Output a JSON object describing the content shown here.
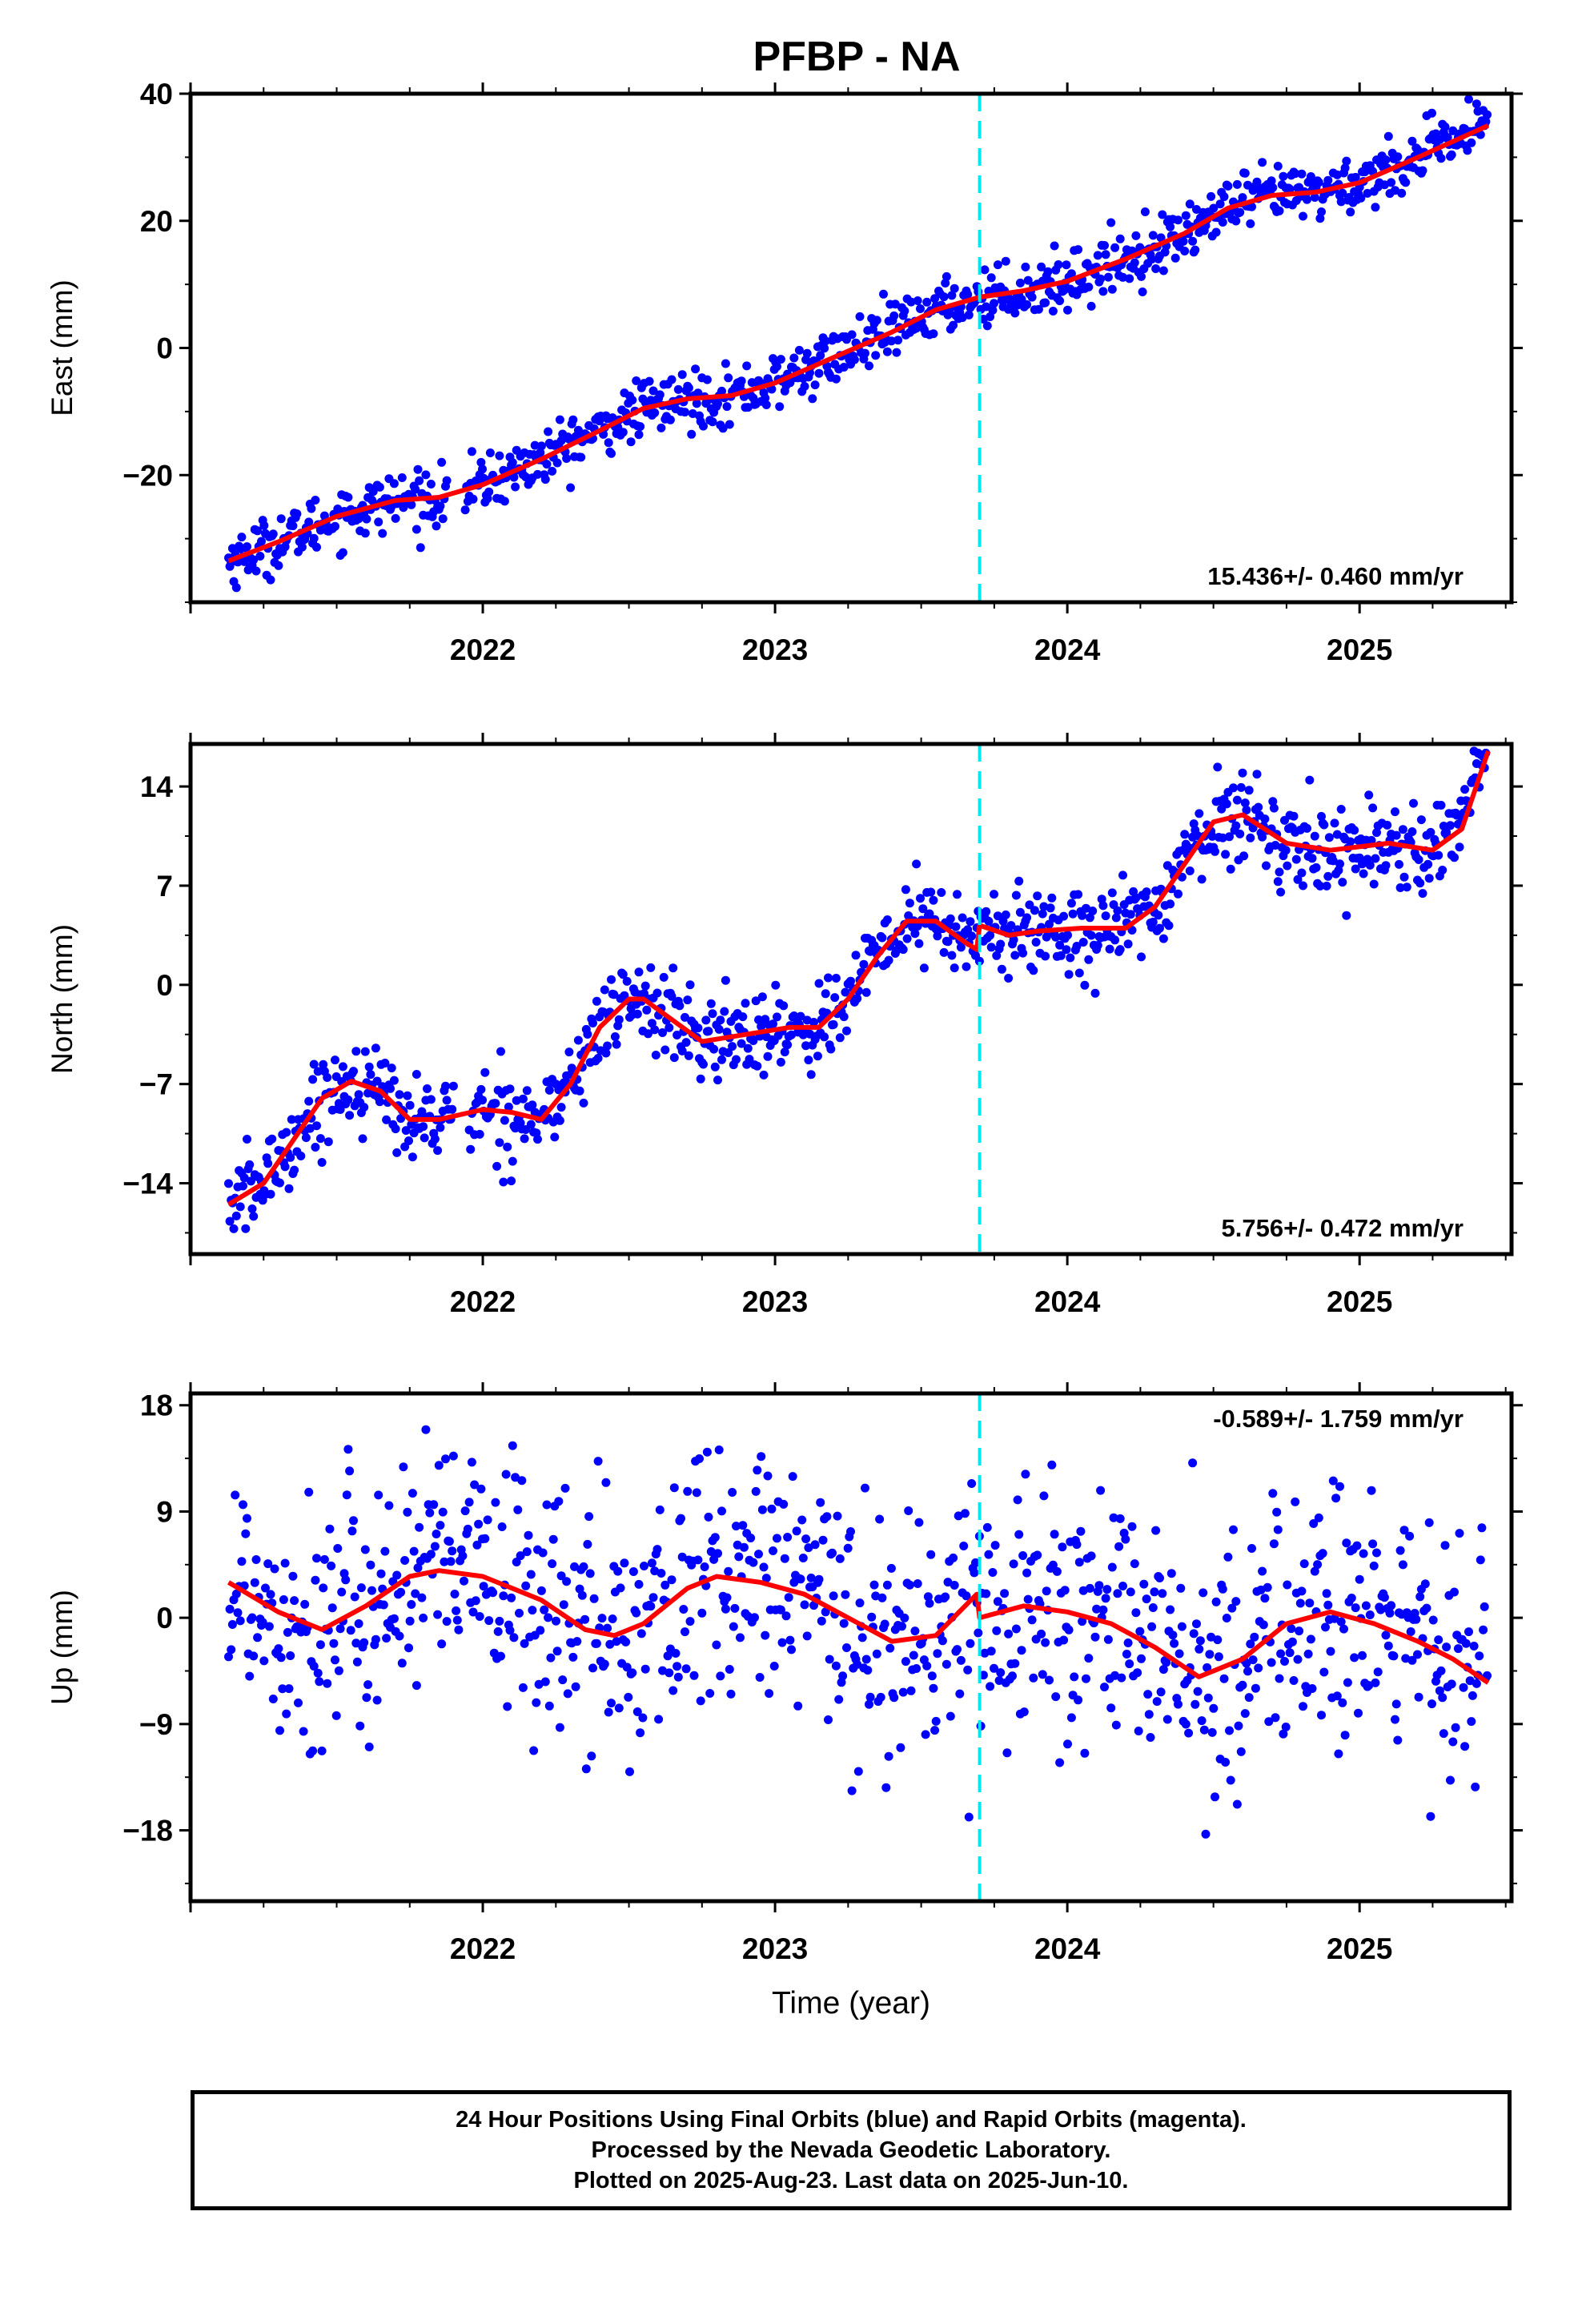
{
  "title": "PFBP - NA",
  "x_axis_label": "Time (year)",
  "footer": {
    "line1": "24 Hour Positions Using Final Orbits (blue) and Rapid Orbits (magenta).",
    "line2": "Processed by the Nevada Geodetic Laboratory.",
    "line3": "Plotted on 2025-Aug-23. Last data on 2025-Jun-10."
  },
  "colors": {
    "points": "#0000ff",
    "fit": "#ff0000",
    "marker": "#00e5ee",
    "frame": "#000000"
  },
  "chart_data": [
    {
      "type": "scatter",
      "panel": "east",
      "ylabel": "East (mm)",
      "xlim": [
        2021.0,
        2025.52
      ],
      "ylim": [
        -40,
        40
      ],
      "yticks": [
        40,
        20,
        0,
        -20
      ],
      "xticks": [
        2022,
        2023,
        2024,
        2025
      ],
      "rate_label": "15.436+/- 0.460 mm/yr",
      "rate_position": "bottom-right",
      "marker_x": 2023.7,
      "x_range": [
        2021.13,
        2025.44
      ],
      "fit_x": [
        2021.13,
        2021.3,
        2021.5,
        2021.7,
        2021.85,
        2022.0,
        2022.2,
        2022.4,
        2022.55,
        2022.7,
        2022.85,
        2023.0,
        2023.2,
        2023.4,
        2023.55,
        2023.7,
        2023.85,
        2024.0,
        2024.2,
        2024.4,
        2024.55,
        2024.7,
        2024.85,
        2025.0,
        2025.2,
        2025.44
      ],
      "fit_y": [
        -33.5,
        -30.5,
        -26.5,
        -24,
        -23.5,
        -21.5,
        -17.5,
        -13,
        -9.5,
        -8,
        -7.5,
        -5.5,
        -1.5,
        2.5,
        6,
        8,
        9,
        10.5,
        14,
        18,
        22,
        24,
        24.5,
        26,
        30,
        35
      ],
      "point_scatter": 2.2,
      "gaps": [
        [
          2021.88,
          2021.94
        ]
      ]
    },
    {
      "type": "scatter",
      "panel": "north",
      "ylabel": "North (mm)",
      "xlim": [
        2021.0,
        2025.52
      ],
      "ylim": [
        -19,
        17
      ],
      "yticks": [
        14,
        7,
        0,
        -7,
        -14
      ],
      "xticks": [
        2022,
        2023,
        2024,
        2025
      ],
      "rate_label": "5.756+/- 0.472 mm/yr",
      "rate_position": "bottom-right",
      "marker_x": 2023.7,
      "x_range": [
        2021.13,
        2025.44
      ],
      "fit_x": [
        2021.13,
        2021.25,
        2021.35,
        2021.45,
        2021.55,
        2021.65,
        2021.75,
        2021.85,
        2022.0,
        2022.1,
        2022.2,
        2022.3,
        2022.4,
        2022.5,
        2022.55,
        2022.65,
        2022.75,
        2022.9,
        2023.05,
        2023.15,
        2023.25,
        2023.35,
        2023.45,
        2023.55,
        2023.65,
        2023.69,
        2023.7,
        2023.8,
        2023.9,
        2024.05,
        2024.2,
        2024.3,
        2024.4,
        2024.5,
        2024.6,
        2024.75,
        2024.9,
        2025.1,
        2025.25,
        2025.35,
        2025.44
      ],
      "fit_y": [
        -15.5,
        -14,
        -11,
        -8,
        -6.8,
        -7.5,
        -9.5,
        -9.5,
        -8.8,
        -9,
        -9.5,
        -7,
        -3,
        -1,
        -1,
        -2.5,
        -4,
        -3.5,
        -3,
        -3,
        -1,
        2,
        4.5,
        4.5,
        3,
        2.5,
        4.2,
        3.5,
        3.8,
        4,
        4,
        5.5,
        8.5,
        11.5,
        12,
        10,
        9.5,
        10,
        9.5,
        11,
        16.5
      ],
      "point_scatter": 1.5,
      "gaps": [
        [
          2021.9,
          2021.95
        ]
      ]
    },
    {
      "type": "scatter",
      "panel": "up",
      "ylabel": "Up (mm)",
      "xlim": [
        2021.0,
        2025.52
      ],
      "ylim": [
        -24,
        19
      ],
      "yticks": [
        18,
        9,
        0,
        -9,
        -18
      ],
      "xticks": [
        2022,
        2023,
        2024,
        2025
      ],
      "rate_label": "-0.589+/- 1.759 mm/yr",
      "rate_position": "top-right",
      "marker_x": 2023.7,
      "x_range": [
        2021.13,
        2025.44
      ],
      "fit_x": [
        2021.13,
        2021.3,
        2021.45,
        2021.6,
        2021.75,
        2021.85,
        2022.0,
        2022.2,
        2022.35,
        2022.45,
        2022.55,
        2022.7,
        2022.8,
        2022.95,
        2023.1,
        2023.25,
        2023.4,
        2023.55,
        2023.69,
        2023.7,
        2023.85,
        2024.0,
        2024.15,
        2024.3,
        2024.45,
        2024.6,
        2024.75,
        2024.9,
        2025.05,
        2025.2,
        2025.32,
        2025.44
      ],
      "fit_y": [
        3,
        0.5,
        -1,
        1,
        3.5,
        4,
        3.5,
        1.5,
        -1,
        -1.5,
        -0.5,
        2.5,
        3.5,
        3,
        2,
        0,
        -2,
        -1.5,
        2,
        0,
        1,
        0.5,
        -0.5,
        -2.5,
        -5,
        -3.5,
        -0.5,
        0.5,
        -0.5,
        -2,
        -3.5,
        -5.5
      ],
      "point_scatter": 5.5,
      "gaps": []
    }
  ]
}
